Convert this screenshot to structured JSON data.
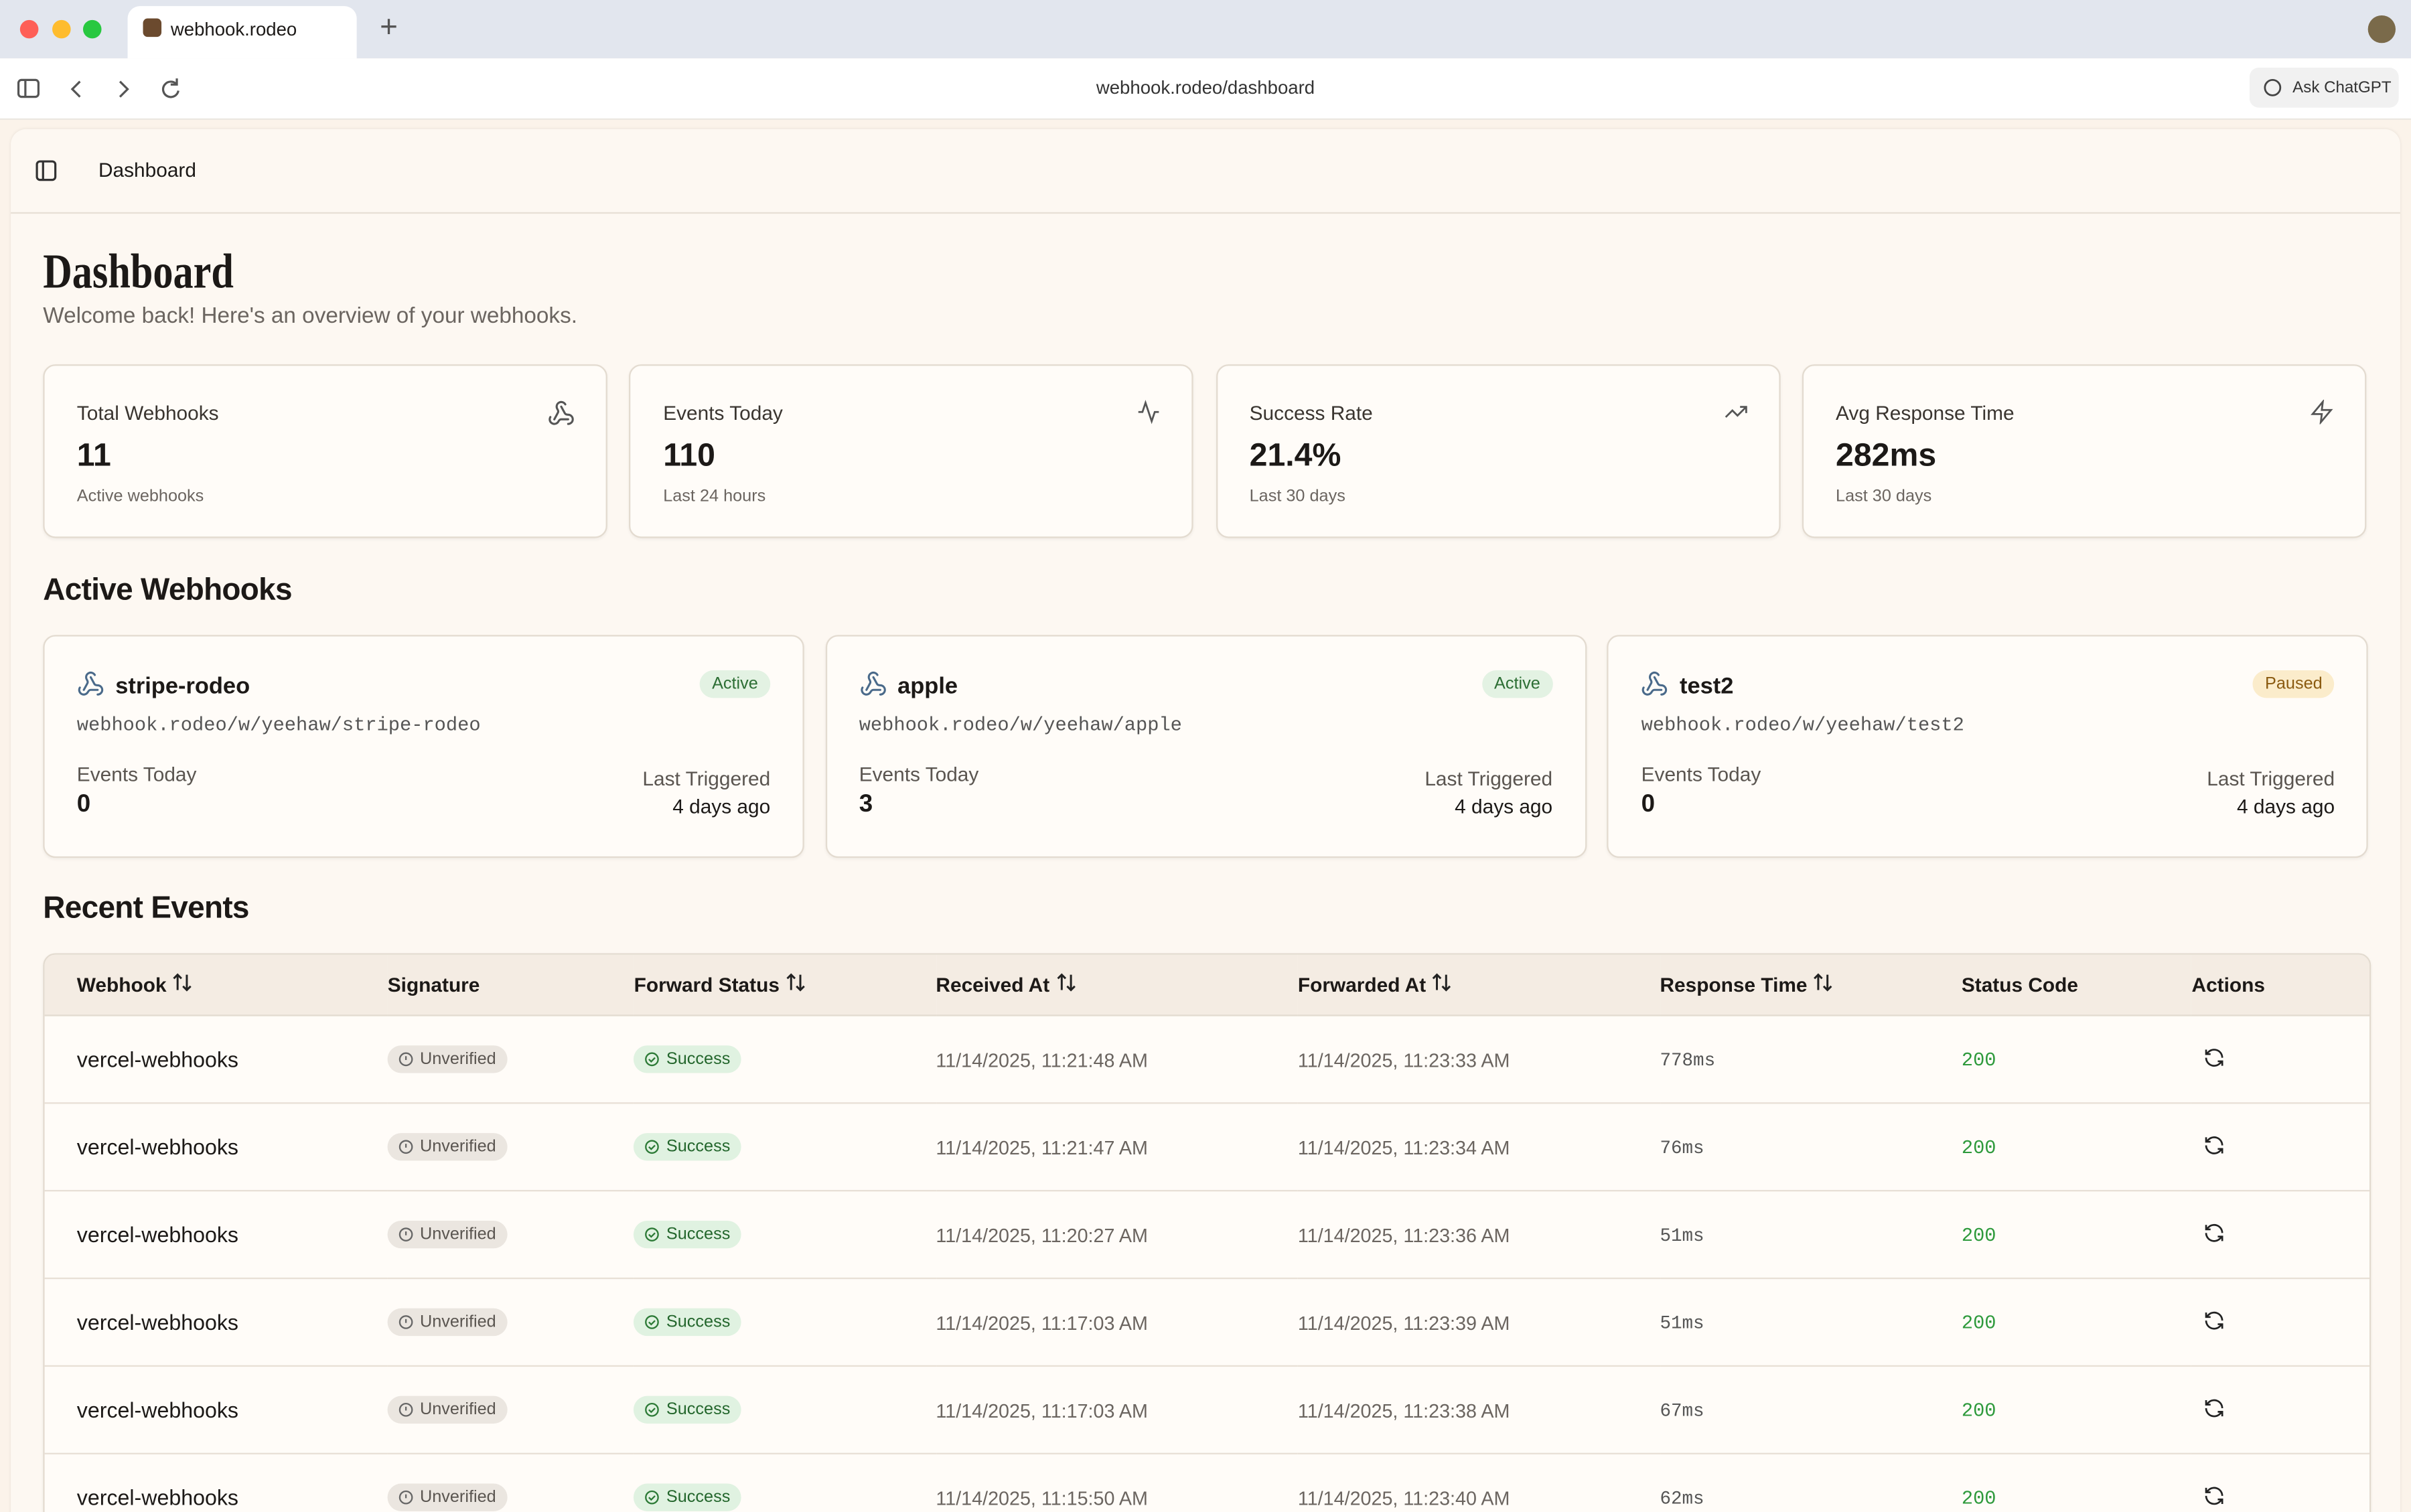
{
  "browser": {
    "tab_title": "webhook.rodeo",
    "url": "webhook.rodeo/dashboard",
    "ask_button": "Ask ChatGPT"
  },
  "header": {
    "breadcrumb": "Dashboard"
  },
  "page": {
    "title": "Dashboard",
    "subtitle": "Welcome back! Here's an overview of your webhooks."
  },
  "stats": [
    {
      "label": "Total Webhooks",
      "value": "11",
      "caption": "Active webhooks"
    },
    {
      "label": "Events Today",
      "value": "110",
      "caption": "Last 24 hours"
    },
    {
      "label": "Success Rate",
      "value": "21.4%",
      "caption": "Last 30 days"
    },
    {
      "label": "Avg Response Time",
      "value": "282ms",
      "caption": "Last 30 days"
    }
  ],
  "active_webhooks": {
    "title": "Active Webhooks",
    "items": [
      {
        "name": "stripe-rodeo",
        "url": "webhook.rodeo/w/yeehaw/stripe-rodeo",
        "status": "Active",
        "events_label": "Events Today",
        "events": "0",
        "last_label": "Last Triggered",
        "last": "4 days ago"
      },
      {
        "name": "apple",
        "url": "webhook.rodeo/w/yeehaw/apple",
        "status": "Active",
        "events_label": "Events Today",
        "events": "3",
        "last_label": "Last Triggered",
        "last": "4 days ago"
      },
      {
        "name": "test2",
        "url": "webhook.rodeo/w/yeehaw/test2",
        "status": "Paused",
        "events_label": "Events Today",
        "events": "0",
        "last_label": "Last Triggered",
        "last": "4 days ago"
      }
    ]
  },
  "recent_events": {
    "title": "Recent Events",
    "columns": [
      "Webhook",
      "Signature",
      "Forward Status",
      "Received At",
      "Forwarded At",
      "Response Time",
      "Status Code",
      "Actions"
    ],
    "rows": [
      [
        "vercel-webhooks",
        "Unverified",
        "Success",
        "11/14/2025, 11:21:48 AM",
        "11/14/2025, 11:23:33 AM",
        "778ms",
        "200"
      ],
      [
        "vercel-webhooks",
        "Unverified",
        "Success",
        "11/14/2025, 11:21:47 AM",
        "11/14/2025, 11:23:34 AM",
        "76ms",
        "200"
      ],
      [
        "vercel-webhooks",
        "Unverified",
        "Success",
        "11/14/2025, 11:20:27 AM",
        "11/14/2025, 11:23:36 AM",
        "51ms",
        "200"
      ],
      [
        "vercel-webhooks",
        "Unverified",
        "Success",
        "11/14/2025, 11:17:03 AM",
        "11/14/2025, 11:23:39 AM",
        "51ms",
        "200"
      ],
      [
        "vercel-webhooks",
        "Unverified",
        "Success",
        "11/14/2025, 11:17:03 AM",
        "11/14/2025, 11:23:38 AM",
        "67ms",
        "200"
      ],
      [
        "vercel-webhooks",
        "Unverified",
        "Success",
        "11/14/2025, 11:15:50 AM",
        "11/14/2025, 11:23:40 AM",
        "62ms",
        "200"
      ]
    ]
  }
}
